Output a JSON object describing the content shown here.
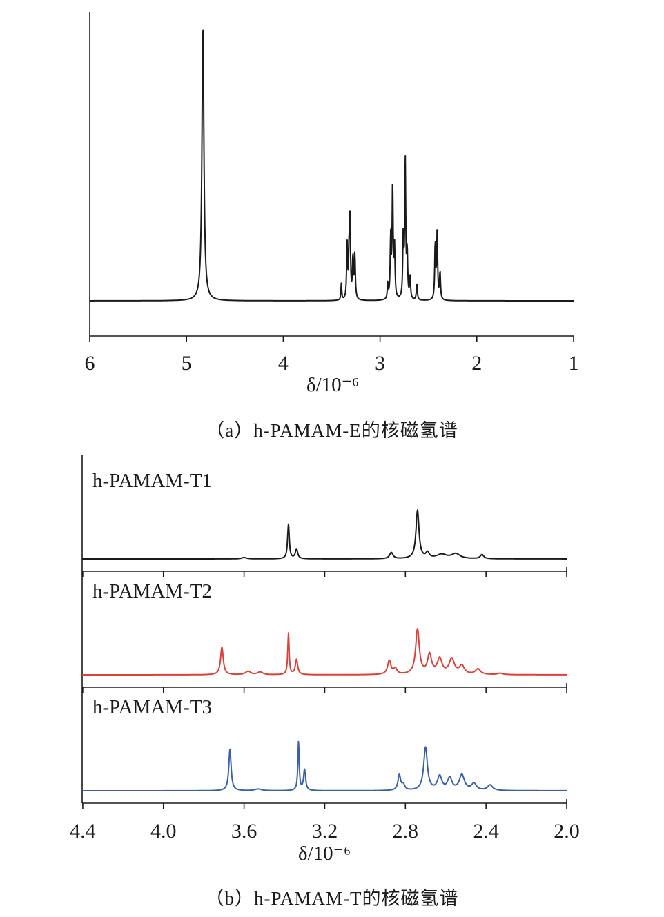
{
  "chart_data": [
    {
      "type": "line",
      "caption": "（a）h-PAMAM-E的核磁氢谱",
      "xlabel": "δ/10⁻⁶",
      "xlim": [
        6,
        1
      ],
      "xticks": [
        "6",
        "5",
        "4",
        "3",
        "2",
        "1"
      ],
      "ylabel": "",
      "series": [
        {
          "color": "#1a1a1a",
          "baseline": 0.045,
          "peaks": [
            {
              "x": 4.83,
              "h": 1.0,
              "w": 0.012
            },
            {
              "x": 3.4,
              "h": 0.06,
              "w": 0.005
            },
            {
              "x": 3.34,
              "h": 0.2,
              "w": 0.006
            },
            {
              "x": 3.32,
              "h": 0.15,
              "w": 0.005
            },
            {
              "x": 3.31,
              "h": 0.28,
              "w": 0.006
            },
            {
              "x": 3.28,
              "h": 0.15,
              "w": 0.006
            },
            {
              "x": 3.26,
              "h": 0.16,
              "w": 0.006
            },
            {
              "x": 2.92,
              "h": 0.06,
              "w": 0.005
            },
            {
              "x": 2.89,
              "h": 0.22,
              "w": 0.006
            },
            {
              "x": 2.87,
              "h": 0.41,
              "w": 0.006
            },
            {
              "x": 2.85,
              "h": 0.18,
              "w": 0.006
            },
            {
              "x": 2.76,
              "h": 0.22,
              "w": 0.006
            },
            {
              "x": 2.74,
              "h": 0.5,
              "w": 0.006
            },
            {
              "x": 2.72,
              "h": 0.16,
              "w": 0.006
            },
            {
              "x": 2.69,
              "h": 0.08,
              "w": 0.006
            },
            {
              "x": 2.62,
              "h": 0.06,
              "w": 0.006
            },
            {
              "x": 2.43,
              "h": 0.2,
              "w": 0.006
            },
            {
              "x": 2.41,
              "h": 0.24,
              "w": 0.006
            },
            {
              "x": 2.38,
              "h": 0.1,
              "w": 0.006
            }
          ]
        }
      ]
    },
    {
      "type": "line",
      "caption": "（b）h-PAMAM-T的核磁氢谱",
      "xlabel": "δ/10⁻⁶",
      "xlim": [
        4.5,
        2.0
      ],
      "xticks": [
        "4.4",
        "4.0",
        "3.6",
        "3.2",
        "2.8",
        "2.4",
        "2.0"
      ],
      "ylabel": "",
      "series": [
        {
          "name": "h-PAMAM-T1",
          "color": "#1a1a1a",
          "baseline": 0.0,
          "peaks": [
            {
              "x": 3.6,
              "h": 0.02,
              "w": 0.015
            },
            {
              "x": 3.38,
              "h": 0.5,
              "w": 0.005
            },
            {
              "x": 3.34,
              "h": 0.14,
              "w": 0.007
            },
            {
              "x": 2.87,
              "h": 0.09,
              "w": 0.01
            },
            {
              "x": 2.74,
              "h": 0.7,
              "w": 0.009
            },
            {
              "x": 2.69,
              "h": 0.08,
              "w": 0.01
            },
            {
              "x": 2.62,
              "h": 0.06,
              "w": 0.03
            },
            {
              "x": 2.55,
              "h": 0.07,
              "w": 0.025
            },
            {
              "x": 2.42,
              "h": 0.06,
              "w": 0.01
            }
          ]
        },
        {
          "name": "h-PAMAM-T2",
          "color": "#d9413b",
          "baseline": 0.0,
          "peaks": [
            {
              "x": 3.71,
              "h": 0.4,
              "w": 0.008
            },
            {
              "x": 3.58,
              "h": 0.05,
              "w": 0.015
            },
            {
              "x": 3.52,
              "h": 0.04,
              "w": 0.015
            },
            {
              "x": 3.38,
              "h": 0.6,
              "w": 0.004
            },
            {
              "x": 3.34,
              "h": 0.22,
              "w": 0.007
            },
            {
              "x": 2.88,
              "h": 0.2,
              "w": 0.01
            },
            {
              "x": 2.85,
              "h": 0.08,
              "w": 0.01
            },
            {
              "x": 2.74,
              "h": 0.65,
              "w": 0.011
            },
            {
              "x": 2.68,
              "h": 0.28,
              "w": 0.012
            },
            {
              "x": 2.63,
              "h": 0.22,
              "w": 0.014
            },
            {
              "x": 2.57,
              "h": 0.22,
              "w": 0.016
            },
            {
              "x": 2.52,
              "h": 0.12,
              "w": 0.015
            },
            {
              "x": 2.44,
              "h": 0.08,
              "w": 0.015
            },
            {
              "x": 2.33,
              "h": 0.02,
              "w": 0.015
            }
          ]
        },
        {
          "name": "h-PAMAM-T3",
          "color": "#3a61a6",
          "baseline": 0.0,
          "peaks": [
            {
              "x": 3.67,
              "h": 0.75,
              "w": 0.007
            },
            {
              "x": 3.53,
              "h": 0.03,
              "w": 0.02
            },
            {
              "x": 3.33,
              "h": 0.88,
              "w": 0.004
            },
            {
              "x": 3.3,
              "h": 0.38,
              "w": 0.006
            },
            {
              "x": 2.83,
              "h": 0.28,
              "w": 0.008
            },
            {
              "x": 2.81,
              "h": 0.1,
              "w": 0.008
            },
            {
              "x": 2.7,
              "h": 0.78,
              "w": 0.011
            },
            {
              "x": 2.63,
              "h": 0.25,
              "w": 0.013
            },
            {
              "x": 2.58,
              "h": 0.22,
              "w": 0.013
            },
            {
              "x": 2.52,
              "h": 0.28,
              "w": 0.015
            },
            {
              "x": 2.46,
              "h": 0.12,
              "w": 0.015
            },
            {
              "x": 2.38,
              "h": 0.1,
              "w": 0.015
            }
          ]
        }
      ]
    }
  ]
}
